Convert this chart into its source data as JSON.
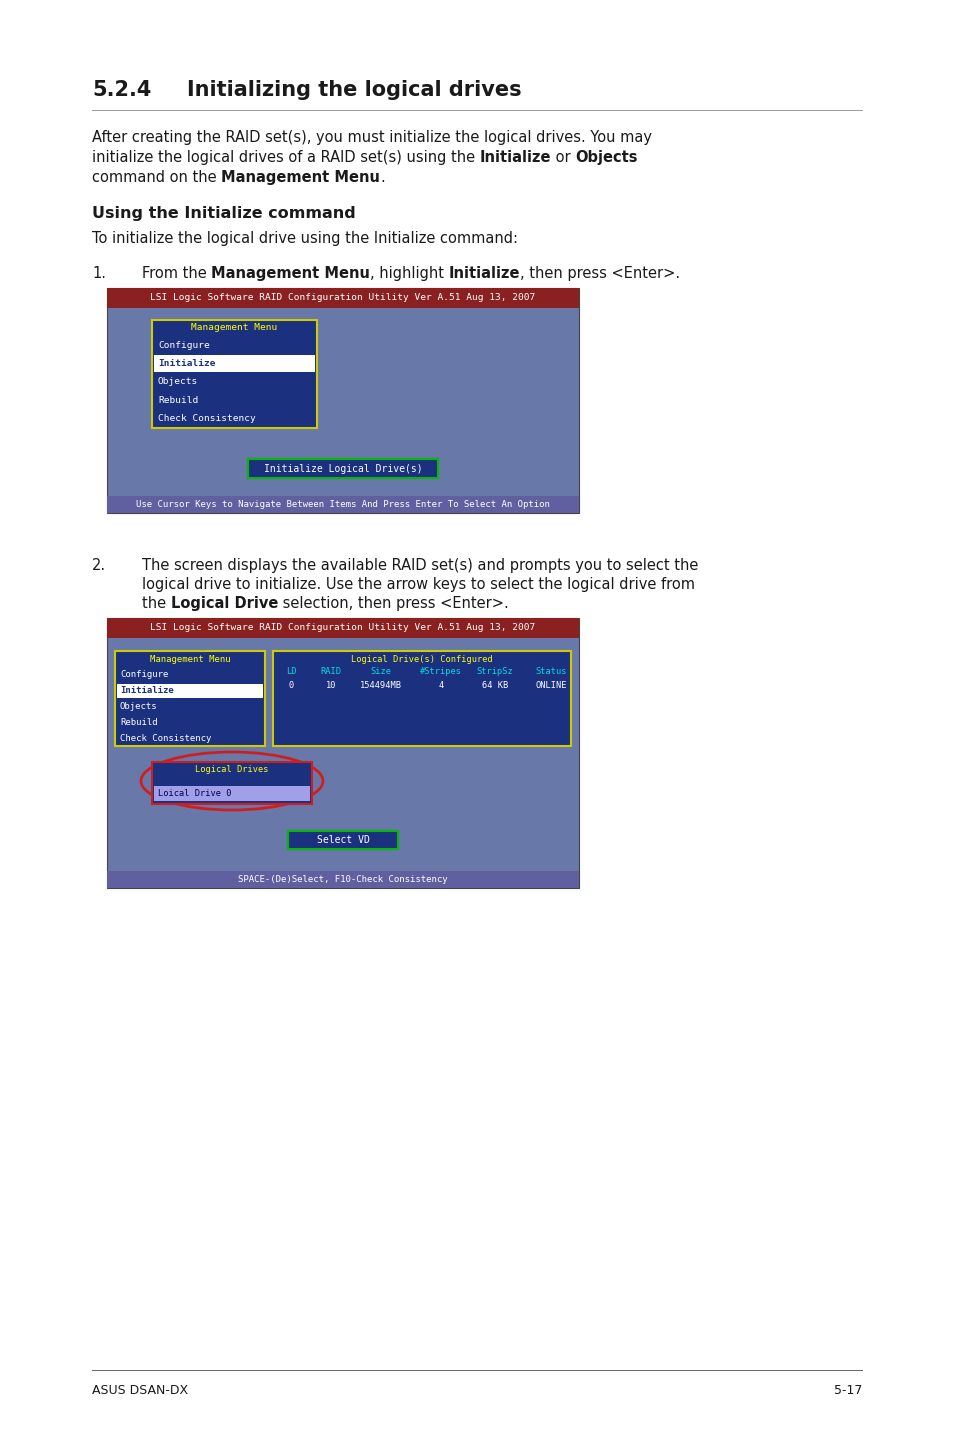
{
  "page_bg": "#ffffff",
  "title": "5.2.4    Initializing the logical drives",
  "subheading": "Using the Initialize command",
  "sub_body": "To initialize the logical drive using the Initialize command:",
  "screen1_title_bar": "LSI Logic Software RAID Configuration Utility Ver A.51 Aug 13, 2007",
  "screen1_bg": "#6878a8",
  "screen1_title_bg": "#8b2020",
  "screen1_footer_bg": "#6060a0",
  "screen1_menu_title": "Management Menu",
  "screen1_menu_items": [
    "Configure",
    "Initialize",
    "Objects",
    "Rebuild",
    "Check Consistency"
  ],
  "screen1_selected": "Initialize",
  "screen1_box_bg": "#1c3080",
  "screen1_box_border": "#cccc00",
  "screen1_button": "Initialize Logical Drive(s)",
  "screen1_footer": "Use Cursor Keys to Navigate Between Items And Press Enter To Select An Option",
  "screen2_title_bar": "LSI Logic Software RAID Configuration Utility Ver A.51 Aug 13, 2007",
  "screen2_bg": "#6878a8",
  "screen2_title_bg": "#8b2020",
  "screen2_footer_bg": "#6060a0",
  "screen2_menu_title": "Management Menu",
  "screen2_menu_items": [
    "Configure",
    "Initialize",
    "Objects",
    "Rebuild",
    "Check Consistency"
  ],
  "screen2_box_bg": "#1c3080",
  "screen2_box_border": "#cccc00",
  "screen2_table_title": "Logical Drive(s) Configured",
  "screen2_table_cols": [
    "LD",
    "RAID",
    "Size",
    "#Stripes",
    "StripSz",
    "Status"
  ],
  "screen2_table_row": [
    "0",
    "10",
    "154494MB",
    "4",
    "64 KB",
    "ONLINE"
  ],
  "screen2_ld_box_title": "Logical Drives",
  "screen2_ld_item": "Loical Drive 0",
  "screen2_ld_circle_color": "#cc2020",
  "screen2_button": "Select VD",
  "screen2_footer": "SPACE-(De)Select, F10-Check Consistency",
  "footer_left": "ASUS DSAN-DX",
  "footer_right": "5-17",
  "text_color": "#1a1a1a",
  "mono_font": "DejaVu Sans Mono",
  "sans_font": "DejaVu Sans"
}
